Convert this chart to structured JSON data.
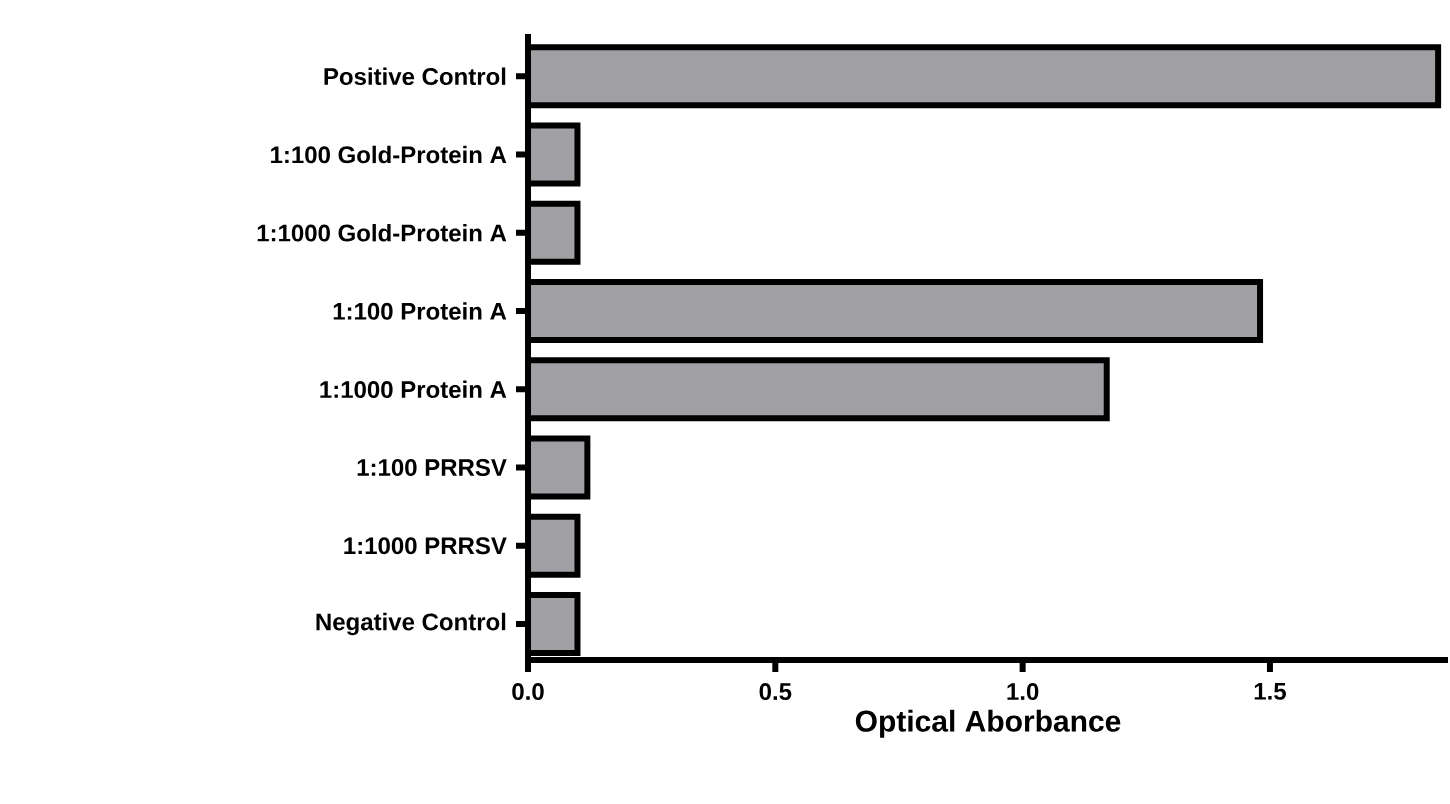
{
  "chart_data": {
    "type": "bar",
    "orientation": "horizontal",
    "xlabel": "Optical Aborbance",
    "categories": [
      "Positive Control",
      "1:100 Gold-Protein A",
      "1:1000 Gold-Protein A",
      "1:100 Protein A",
      "1:1000 Protein A",
      "1:100 PRRSV",
      "1:1000 PRRSV",
      "Negative Control"
    ],
    "values": [
      1.84,
      0.1,
      0.1,
      1.48,
      1.17,
      0.12,
      0.1,
      0.1
    ],
    "color": "#a0a0a4",
    "xlim": [
      0,
      1.86
    ],
    "xticks": [
      {
        "value": 0,
        "label": "0.0"
      },
      {
        "value": 0.5,
        "label": "0.5"
      },
      {
        "value": 1,
        "label": "1.0"
      },
      {
        "value": 1.5,
        "label": "1.5"
      }
    ]
  }
}
